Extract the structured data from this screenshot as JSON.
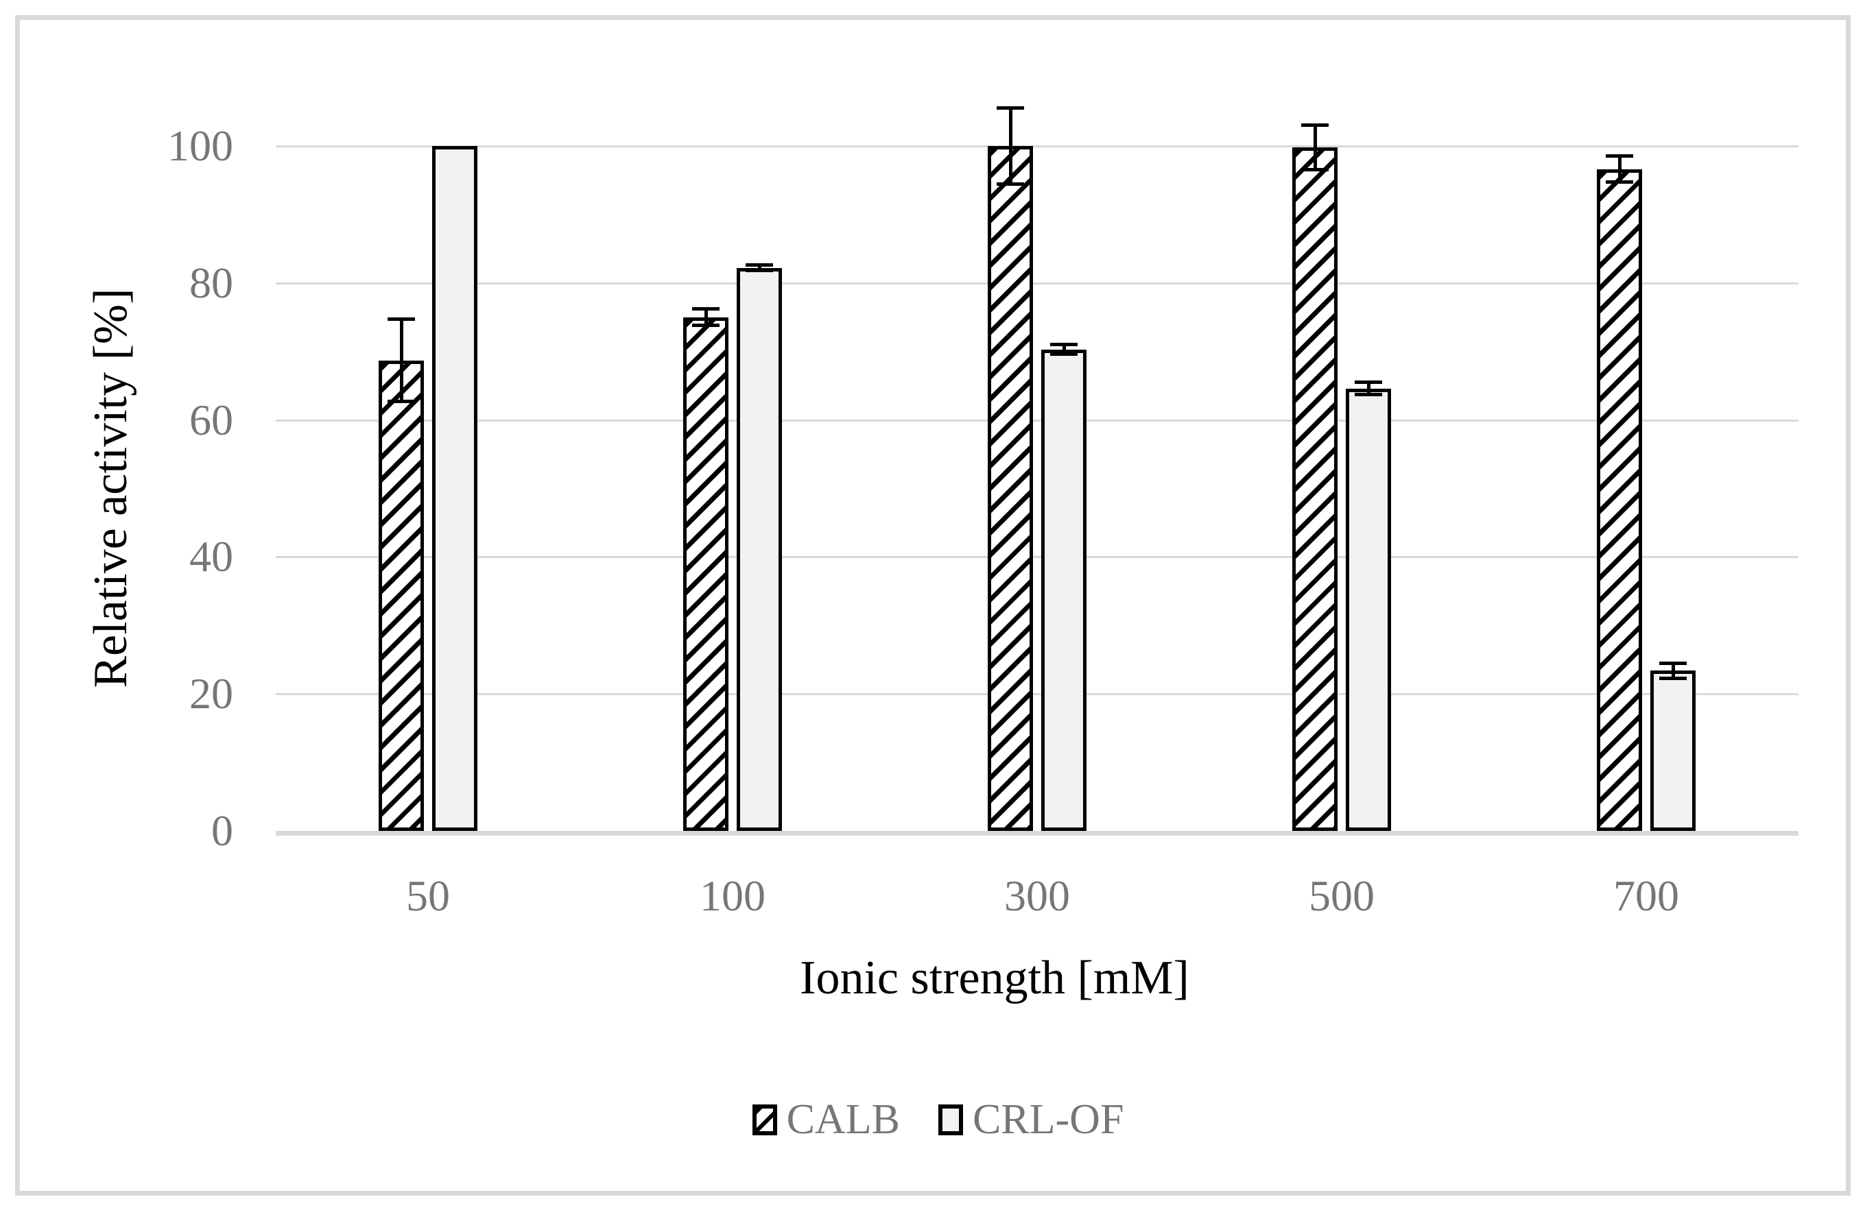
{
  "chart_data": {
    "type": "bar",
    "title": "",
    "xlabel": "Ionic strength [mM]",
    "ylabel": "Relative activity [%]",
    "categories": [
      "50",
      "100",
      "300",
      "500",
      "700"
    ],
    "series": [
      {
        "name": "CALB",
        "style": "hatched",
        "fill_pattern": "black diagonal upward hatch on white",
        "values": [
          68.7,
          75.0,
          100.0,
          99.8,
          96.6
        ],
        "errors": [
          6.0,
          1.2,
          5.6,
          3.3,
          1.9
        ]
      },
      {
        "name": "CRL-OF",
        "style": "solid",
        "fill": "#f2f2f2",
        "values": [
          100.0,
          82.2,
          70.3,
          64.6,
          23.4
        ],
        "errors": [
          0,
          0.4,
          0.7,
          0.9,
          1.1
        ]
      }
    ],
    "ylim": [
      0,
      100
    ],
    "yticks": [
      0,
      20,
      40,
      60,
      80,
      100
    ],
    "grid": true,
    "legend_position": "bottom",
    "bar_border_color": "#000000",
    "gridline_color": "#d9d9d9",
    "tick_label_color": "#767676",
    "axis_title_color": "#000000"
  }
}
